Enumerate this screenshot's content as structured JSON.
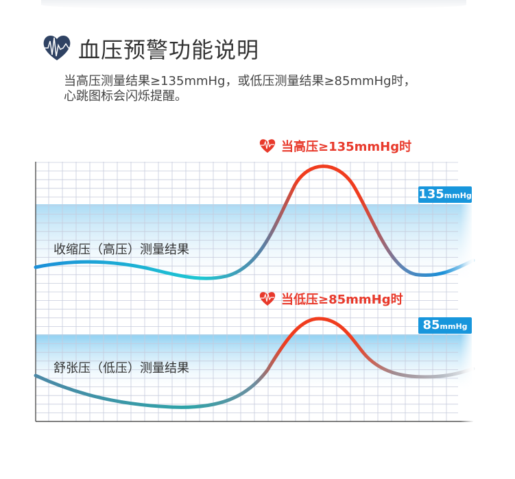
{
  "header": {
    "icon": "heart-pulse-icon",
    "title": "血压预警功能说明",
    "description_line1": "当高压测量结果≥135mmHg，或低压测量结果≥85mmHg时，",
    "description_line2": "心跳图标会闪烁提醒。"
  },
  "systolic": {
    "label": "收缩压（高压）测量结果",
    "alert": "当高压≥135mmHg时",
    "threshold": "135",
    "unit": "mmHg"
  },
  "diastolic": {
    "label": "舒张压（低压）测量结果",
    "alert": "当低压≥85mmHg时",
    "threshold": "85",
    "unit": "mmHg"
  },
  "colors": {
    "alert": "#e8392b",
    "badge": "#1796dc",
    "normal_curve": "#1a90d8",
    "title_icon": "#2f4263"
  }
}
